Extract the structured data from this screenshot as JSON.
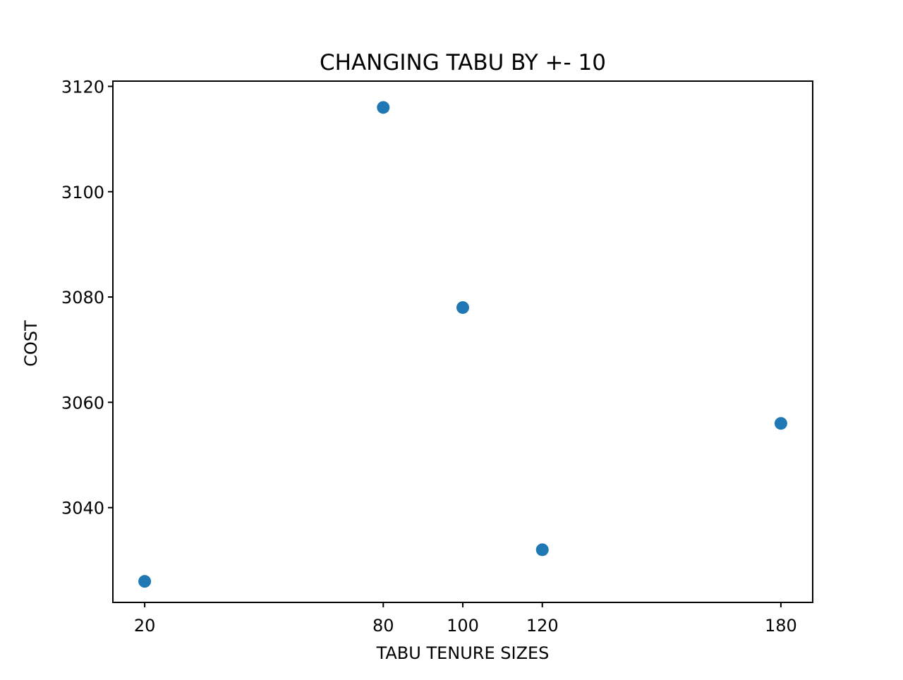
{
  "chart_data": {
    "type": "scatter",
    "title": "CHANGING TABU BY +- 10",
    "xlabel": "TABU TENURE SIZES",
    "ylabel": "COST",
    "x": [
      20,
      80,
      100,
      120,
      180
    ],
    "y": [
      3026,
      3116,
      3078,
      3032,
      3056
    ],
    "xlim": [
      12,
      188
    ],
    "ylim": [
      3022,
      3121
    ],
    "xticks": [
      20,
      80,
      100,
      120,
      180
    ],
    "yticks": [
      3040,
      3060,
      3080,
      3100,
      3120
    ],
    "grid": false,
    "marker_color": "#1f77b4"
  }
}
